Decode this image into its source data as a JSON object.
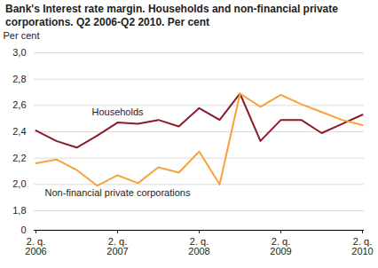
{
  "chart_data": {
    "type": "line",
    "title": "Bank's Interest rate margin. Households and non-financial private corporations. Q2 2006-Q2 2010. Per cent",
    "y_label": "Per cent",
    "categories": [
      "2. q.\n2006",
      null,
      null,
      null,
      "2. q.\n2007",
      null,
      null,
      null,
      "2. q.\n2008",
      null,
      null,
      null,
      "2. q.\n2009",
      null,
      null,
      null,
      "2. q.\n2010"
    ],
    "series": [
      {
        "name": "Households",
        "color": "#8b1a2b",
        "values": [
          2.41,
          2.33,
          2.28,
          2.37,
          2.47,
          2.46,
          2.49,
          2.44,
          2.58,
          2.49,
          2.69,
          2.33,
          2.49,
          2.49,
          2.39,
          2.46,
          2.53
        ]
      },
      {
        "name": "Non-financial private corporations",
        "color": "#f5a33a",
        "values": [
          2.16,
          2.19,
          2.11,
          1.99,
          2.07,
          2.01,
          2.13,
          2.09,
          2.25,
          2.0,
          2.69,
          2.59,
          2.68,
          2.61,
          2.55,
          2.49,
          2.45
        ]
      }
    ],
    "ylim": [
      0,
      3.0
    ],
    "yticks": [
      0,
      {
        "value": 1.8,
        "label": "1,8"
      },
      {
        "value": 2.0,
        "label": "2,0"
      },
      {
        "value": 2.2,
        "label": "2,2"
      },
      {
        "value": 2.4,
        "label": "2,4"
      },
      {
        "value": 2.6,
        "label": "2,6"
      },
      {
        "value": 2.8,
        "label": "2,8"
      },
      {
        "value": 3.0,
        "label": "3,0"
      }
    ],
    "grid": true
  }
}
